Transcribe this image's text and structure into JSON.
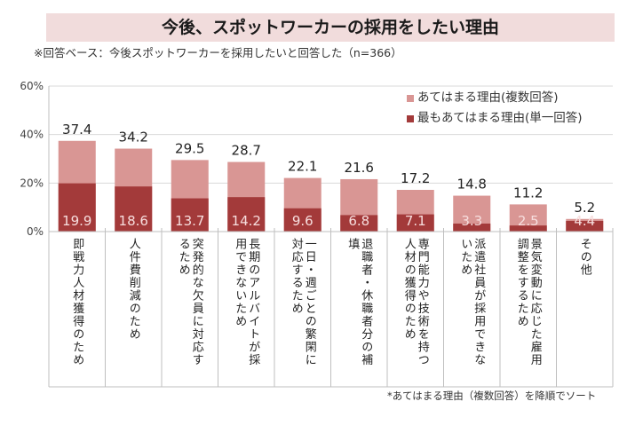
{
  "header": {
    "title": "今後、スポットワーカーの採用をしたい理由",
    "subtitle": "※回答ベース：今後スポットワーカーを採用したいと回答した（n=366）"
  },
  "legend": {
    "items": [
      {
        "label": "あてはまる理由(複数回答)",
        "color": "#d99694"
      },
      {
        "label": "最もあてはまる理由(単一回答)",
        "color": "#a33a3a"
      }
    ]
  },
  "footnote": "*あてはまる理由（複数回答）を降順でソート",
  "chart_data": {
    "type": "bar",
    "stacking": "overlay",
    "title": "今後、スポットワーカーの採用をしたい理由",
    "xlabel": "",
    "ylabel": "",
    "ylim": [
      0,
      60
    ],
    "yticks": [
      0,
      20,
      40,
      60
    ],
    "ytick_labels": [
      "0%",
      "20%",
      "40%",
      "60%"
    ],
    "grid": true,
    "legend_position": "top-right",
    "categories": [
      "即戦力人材獲得のため",
      "人件費削減のため",
      "突発的な欠員に対応するため",
      "長期のアルバイトが採用できないため",
      "一日・週ごとの繁閑に対応するため",
      "退職者・休職者分の補填",
      "専門能力や技術を持つ人材の獲得のため",
      "派遣社員が採用できないため",
      "景気変動に応じた雇用調整をするため",
      "その他"
    ],
    "category_lines": [
      [
        "即戦力人材獲得のため"
      ],
      [
        "人件費削減のため"
      ],
      [
        "突発的な欠員に対応す",
        "るため"
      ],
      [
        "長期のアルバイトが採",
        "用できないため"
      ],
      [
        "一日・週ごとの繁閑に",
        "対応するため"
      ],
      [
        "退職者・休職者分の補",
        "填"
      ],
      [
        "専門能力や技術を持つ",
        "人材の獲得のため"
      ],
      [
        "派遣社員が採用できな",
        "いため"
      ],
      [
        "景気変動に応じた雇用",
        "調整をするため"
      ],
      [
        "その他"
      ]
    ],
    "series": [
      {
        "name": "あてはまる理由(複数回答)",
        "color": "#d99694",
        "values": [
          37.4,
          34.2,
          29.5,
          28.7,
          22.1,
          21.6,
          17.2,
          14.8,
          11.2,
          5.2
        ]
      },
      {
        "name": "最もあてはまる理由(単一回答)",
        "color": "#a33a3a",
        "values": [
          19.9,
          18.6,
          13.7,
          14.2,
          9.6,
          6.8,
          7.1,
          3.3,
          2.5,
          4.4
        ]
      }
    ]
  }
}
